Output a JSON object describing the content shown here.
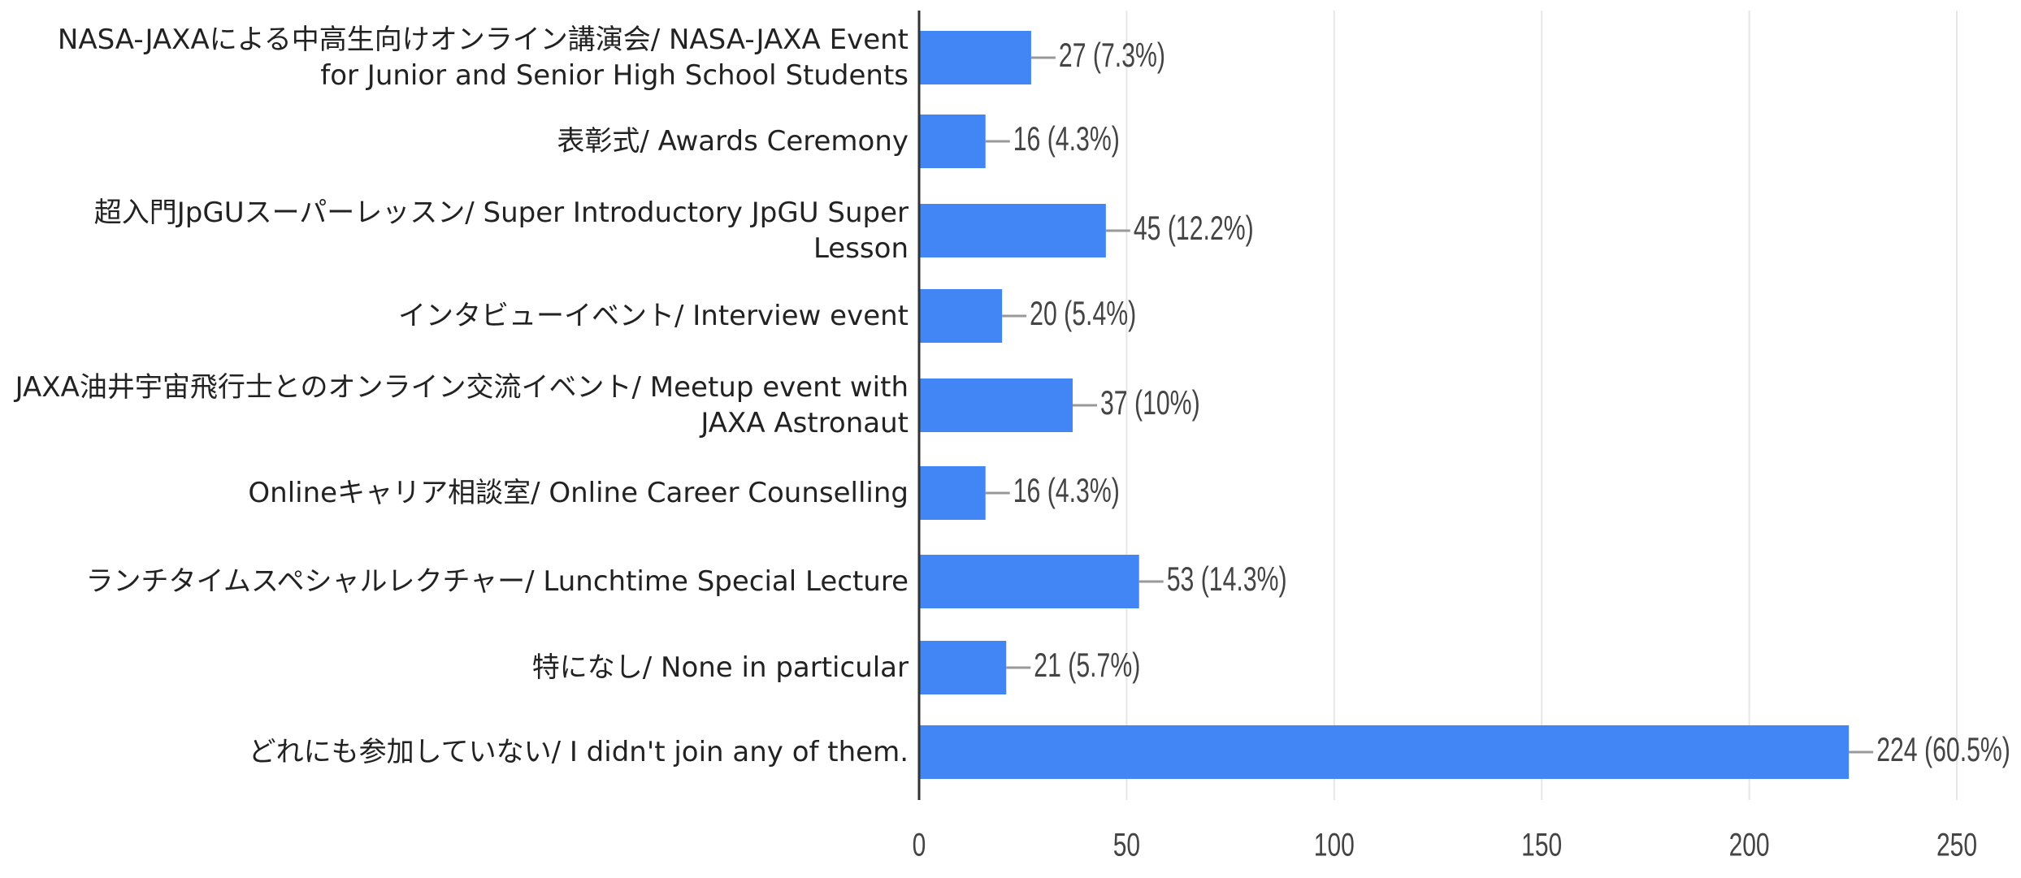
{
  "chart_data": {
    "type": "bar",
    "orientation": "horizontal",
    "categories": [
      "NASA-JAXAによる中高生向けオンライン講演会/ NASA-JAXA Event for Junior and Senior High School Students",
      "表彰式/ Awards Ceremony",
      "超入門JpGUスーパーレッスン/ Super Introductory JpGU Super Lesson",
      "インタビューイベント/ Interview event",
      "JAXA油井宇宙飛行士とのオンライン交流イベント/ Meetup event with JAXA Astronaut",
      "Onlineキャリア相談室/ Online Career Counselling",
      "ランチタイムスペシャルレクチャー/ Lunchtime Special Lecture",
      "特になし/ None in particular",
      "どれにも参加していない/ I didn't join any of them."
    ],
    "values": [
      27,
      16,
      45,
      20,
      37,
      16,
      53,
      21,
      224
    ],
    "value_labels": [
      "27 (7.3%)",
      "16 (4.3%)",
      "45 (12.2%)",
      "20 (5.4%)",
      "37 (10%)",
      "16 (4.3%)",
      "53 (14.3%)",
      "21 (5.7%)",
      "224 (60.5%)"
    ],
    "color": "#4285f4",
    "xlim": [
      0,
      250
    ],
    "xticks": [
      0,
      50,
      100,
      150,
      200,
      250
    ],
    "grid": true
  }
}
